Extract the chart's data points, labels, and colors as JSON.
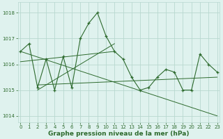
{
  "hours": [
    0,
    1,
    2,
    3,
    4,
    5,
    6,
    7,
    8,
    9,
    10,
    11,
    12,
    13,
    14,
    15,
    16,
    17,
    18,
    19,
    20,
    21,
    22,
    23
  ],
  "pressure": [
    1016.5,
    1016.8,
    1015.1,
    1016.2,
    1015.0,
    1016.3,
    1015.1,
    1017.0,
    1017.6,
    1018.0,
    1017.1,
    1016.5,
    1016.2,
    1015.5,
    1015.0,
    1015.1,
    1015.5,
    1015.8,
    1015.7,
    1015.0,
    1015.0,
    1016.4,
    1016.0,
    1015.7
  ],
  "trend1_x": [
    0,
    23
  ],
  "trend1_y": [
    1016.5,
    1014.0
  ],
  "trend2_x": [
    0,
    11
  ],
  "trend2_y": [
    1016.1,
    1016.5
  ],
  "trend3_x": [
    2,
    23
  ],
  "trend3_y": [
    1015.2,
    1015.5
  ],
  "trend4_x": [
    2,
    11
  ],
  "trend4_y": [
    1015.0,
    1016.8
  ],
  "ylim": [
    1013.75,
    1018.4
  ],
  "yticks": [
    1014,
    1015,
    1016,
    1017,
    1018
  ],
  "xticks": [
    0,
    1,
    2,
    3,
    4,
    5,
    6,
    7,
    8,
    9,
    10,
    11,
    12,
    13,
    14,
    15,
    16,
    17,
    18,
    19,
    20,
    21,
    22,
    23
  ],
  "line_color": "#2d6a2d",
  "bg_color": "#dff2ee",
  "grid_color": "#b8d8d0",
  "xlabel": "Graphe pression niveau de la mer (hPa)",
  "xlabel_fontsize": 6.5,
  "tick_fontsize": 5.0,
  "marker": "+"
}
